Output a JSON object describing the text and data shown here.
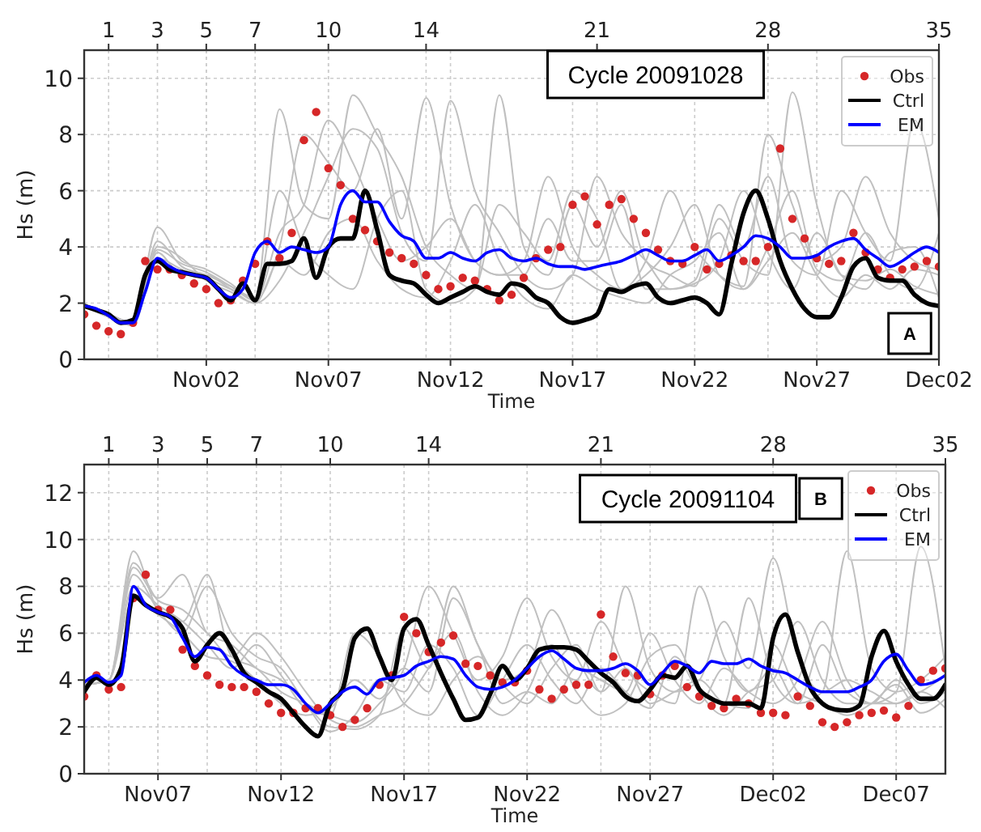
{
  "chart_data": [
    {
      "type": "line",
      "xlabel": "Time",
      "ylabel": "Hs (m)",
      "annotations": [
        "Cycle 20091028",
        "A"
      ],
      "xlim": [
        "2009-10-28",
        "2009-12-02"
      ],
      "xticks": [
        {
          "value": "2009-11-02",
          "label": "Nov02"
        },
        {
          "value": "2009-11-07",
          "label": "Nov07"
        },
        {
          "value": "2009-11-12",
          "label": "Nov12"
        },
        {
          "value": "2009-11-17",
          "label": "Nov17"
        },
        {
          "value": "2009-11-22",
          "label": "Nov22"
        },
        {
          "value": "2009-11-27",
          "label": "Nov27"
        },
        {
          "value": "2009-12-02",
          "label": "Dec02"
        }
      ],
      "x2lim": [
        0,
        35
      ],
      "x2ticks": [
        1,
        3,
        5,
        7,
        10,
        14,
        21,
        28,
        35
      ],
      "ylim": [
        0,
        11
      ],
      "yticks": [
        0,
        2,
        4,
        6,
        8,
        10
      ],
      "grid": true,
      "legend": "top right",
      "x": [
        "2009-10-28T00:00",
        "2009-10-28T12:00",
        "2009-10-29T00:00",
        "2009-10-29T12:00",
        "2009-10-30T00:00",
        "2009-10-30T12:00",
        "2009-10-31T00:00",
        "2009-10-31T12:00",
        "2009-11-01T00:00",
        "2009-11-01T12:00",
        "2009-11-02T00:00",
        "2009-11-02T12:00",
        "2009-11-03T00:00",
        "2009-11-03T12:00",
        "2009-11-04T00:00",
        "2009-11-04T12:00",
        "2009-11-05T00:00",
        "2009-11-05T12:00",
        "2009-11-06T00:00",
        "2009-11-06T12:00",
        "2009-11-07T00:00",
        "2009-11-07T12:00",
        "2009-11-08T00:00",
        "2009-11-08T12:00",
        "2009-11-09T00:00",
        "2009-11-09T12:00",
        "2009-11-10T00:00",
        "2009-11-10T12:00",
        "2009-11-11T00:00",
        "2009-11-11T12:00",
        "2009-11-12T00:00",
        "2009-11-12T12:00",
        "2009-11-13T00:00",
        "2009-11-13T12:00",
        "2009-11-14T00:00",
        "2009-11-14T12:00",
        "2009-11-15T00:00",
        "2009-11-15T12:00",
        "2009-11-16T00:00",
        "2009-11-16T12:00",
        "2009-11-17T00:00",
        "2009-11-17T12:00",
        "2009-11-18T00:00",
        "2009-11-18T12:00",
        "2009-11-19T00:00",
        "2009-11-19T12:00",
        "2009-11-20T00:00",
        "2009-11-20T12:00",
        "2009-11-21T00:00",
        "2009-11-21T12:00",
        "2009-11-22T00:00",
        "2009-11-22T12:00",
        "2009-11-23T00:00",
        "2009-11-23T12:00",
        "2009-11-24T00:00",
        "2009-11-24T12:00",
        "2009-11-25T00:00",
        "2009-11-25T12:00",
        "2009-11-26T00:00",
        "2009-11-26T12:00",
        "2009-11-27T00:00",
        "2009-11-27T12:00",
        "2009-11-28T00:00",
        "2009-11-28T12:00",
        "2009-11-29T00:00",
        "2009-11-29T12:00",
        "2009-11-30T00:00",
        "2009-11-30T12:00",
        "2009-12-01T00:00",
        "2009-12-01T12:00",
        "2009-12-02T00:00"
      ],
      "series": [
        {
          "color": "#c0c0c0",
          "x": [
            "2009-10-28",
            "2009-10-29",
            "2009-10-30",
            "2009-10-31",
            "2009-11-01",
            "2009-11-02",
            "2009-11-03",
            "2009-11-04",
            "2009-11-05",
            "2009-11-06",
            "2009-11-07",
            "2009-11-08",
            "2009-11-09",
            "2009-11-10",
            "2009-11-11",
            "2009-11-12",
            "2009-11-13",
            "2009-11-14",
            "2009-11-15",
            "2009-11-16",
            "2009-11-17",
            "2009-11-18",
            "2009-11-19",
            "2009-11-20",
            "2009-11-21",
            "2009-11-22",
            "2009-11-23",
            "2009-11-24",
            "2009-11-25",
            "2009-11-26",
            "2009-11-27",
            "2009-11-28",
            "2009-11-29",
            "2009-11-30",
            "2009-12-01",
            "2009-12-02"
          ],
          "values": [
            1.9,
            1.6,
            1.3,
            4.2,
            3.3,
            3.0,
            2.6,
            2.2,
            8.9,
            5.5,
            5.0,
            9.4,
            8.0,
            6.5,
            4.0,
            3.0,
            2.5,
            9.4,
            4.0,
            3.0,
            5.5,
            4.0,
            6.0,
            3.5,
            3.0,
            2.6,
            5.0,
            3.5,
            3.0,
            9.5,
            5.5,
            3.0,
            2.8,
            3.2,
            2.6,
            2.3
          ]
        },
        {
          "color": "#c0c0c0",
          "x": [
            "2009-10-28",
            "2009-10-29",
            "2009-10-30",
            "2009-10-31",
            "2009-11-01",
            "2009-11-02",
            "2009-11-03",
            "2009-11-04",
            "2009-11-05",
            "2009-11-06",
            "2009-11-07",
            "2009-11-08",
            "2009-11-09",
            "2009-11-10",
            "2009-11-11",
            "2009-11-12",
            "2009-11-13",
            "2009-11-14",
            "2009-11-15",
            "2009-11-16",
            "2009-11-17",
            "2009-11-18",
            "2009-11-19",
            "2009-11-20",
            "2009-11-21",
            "2009-11-22",
            "2009-11-23",
            "2009-11-24",
            "2009-11-25",
            "2009-11-26",
            "2009-11-27",
            "2009-11-28",
            "2009-11-29",
            "2009-11-30",
            "2009-12-01",
            "2009-12-02"
          ],
          "values": [
            1.9,
            1.6,
            1.3,
            4.7,
            3.5,
            3.2,
            2.7,
            2.1,
            4.0,
            8.0,
            7.0,
            6.0,
            8.2,
            5.0,
            9.3,
            5.5,
            3.5,
            3.0,
            3.5,
            6.5,
            4.0,
            3.0,
            2.5,
            3.5,
            6.0,
            4.0,
            3.0,
            2.6,
            8.0,
            5.5,
            3.5,
            4.0,
            6.5,
            4.5,
            3.5,
            3.2
          ]
        },
        {
          "color": "#c0c0c0",
          "x": [
            "2009-10-28",
            "2009-10-29",
            "2009-10-30",
            "2009-10-31",
            "2009-11-01",
            "2009-11-02",
            "2009-11-03",
            "2009-11-04",
            "2009-11-05",
            "2009-11-06",
            "2009-11-07",
            "2009-11-08",
            "2009-11-09",
            "2009-11-10",
            "2009-11-11",
            "2009-11-12",
            "2009-11-13",
            "2009-11-14",
            "2009-11-15",
            "2009-11-16",
            "2009-11-17",
            "2009-11-18",
            "2009-11-19",
            "2009-11-20",
            "2009-11-21",
            "2009-11-22",
            "2009-11-23",
            "2009-11-24",
            "2009-11-25",
            "2009-11-26",
            "2009-11-27",
            "2009-11-28",
            "2009-11-29",
            "2009-11-30",
            "2009-12-01",
            "2009-12-02"
          ],
          "values": [
            1.9,
            1.5,
            1.2,
            3.8,
            3.0,
            3.0,
            2.5,
            2.0,
            2.8,
            4.5,
            6.5,
            8.2,
            7.5,
            4.5,
            3.5,
            9.2,
            6.0,
            4.5,
            3.0,
            2.5,
            3.0,
            6.5,
            4.5,
            3.5,
            2.5,
            2.8,
            5.5,
            4.0,
            6.5,
            3.5,
            3.0,
            6.0,
            4.5,
            3.5,
            8.5,
            5.0
          ]
        },
        {
          "color": "#c0c0c0",
          "x": [
            "2009-10-28",
            "2009-10-29",
            "2009-10-30",
            "2009-10-31",
            "2009-11-01",
            "2009-11-02",
            "2009-11-03",
            "2009-11-04",
            "2009-11-05",
            "2009-11-06",
            "2009-11-07",
            "2009-11-08",
            "2009-11-09",
            "2009-11-10",
            "2009-11-11",
            "2009-11-12",
            "2009-11-13",
            "2009-11-14",
            "2009-11-15",
            "2009-11-16",
            "2009-11-17",
            "2009-11-18",
            "2009-11-19",
            "2009-11-20",
            "2009-11-21",
            "2009-11-22",
            "2009-11-23",
            "2009-11-24",
            "2009-11-25",
            "2009-11-26",
            "2009-11-27",
            "2009-11-28",
            "2009-11-29",
            "2009-11-30",
            "2009-12-01",
            "2009-12-02"
          ],
          "values": [
            1.9,
            1.6,
            1.3,
            4.0,
            3.6,
            2.8,
            2.4,
            2.0,
            3.5,
            3.0,
            4.5,
            5.0,
            3.5,
            2.5,
            2.2,
            3.5,
            5.5,
            3.5,
            2.2,
            1.8,
            3.0,
            2.5,
            2.2,
            2.0,
            3.0,
            3.5,
            4.5,
            2.5,
            3.5,
            4.5,
            3.0,
            2.2,
            3.0,
            2.5,
            3.2,
            3.0
          ]
        },
        {
          "color": "#c0c0c0",
          "x": [
            "2009-10-28",
            "2009-10-29",
            "2009-10-30",
            "2009-10-31",
            "2009-11-01",
            "2009-11-02",
            "2009-11-03",
            "2009-11-04",
            "2009-11-05",
            "2009-11-06",
            "2009-11-07",
            "2009-11-08",
            "2009-11-09",
            "2009-11-10",
            "2009-11-11",
            "2009-11-12",
            "2009-11-13",
            "2009-11-14",
            "2009-11-15",
            "2009-11-16",
            "2009-11-17",
            "2009-11-18",
            "2009-11-19",
            "2009-11-20",
            "2009-11-21",
            "2009-11-22",
            "2009-11-23",
            "2009-11-24",
            "2009-11-25",
            "2009-11-26",
            "2009-11-27",
            "2009-11-28",
            "2009-11-29",
            "2009-11-30",
            "2009-12-01",
            "2009-12-02"
          ],
          "values": [
            1.9,
            1.6,
            1.3,
            3.6,
            3.2,
            2.9,
            2.5,
            2.2,
            6.0,
            4.0,
            3.0,
            2.5,
            5.0,
            6.0,
            2.5,
            2.0,
            2.5,
            5.5,
            4.5,
            3.5,
            6.0,
            5.0,
            2.5,
            3.0,
            4.0,
            5.5,
            3.0,
            2.5,
            4.0,
            6.0,
            3.2,
            2.8,
            4.5,
            3.0,
            2.5,
            4.5
          ]
        },
        {
          "color": "#c0c0c0",
          "x": [
            "2009-10-28",
            "2009-10-29",
            "2009-10-30",
            "2009-10-31",
            "2009-11-01",
            "2009-11-02",
            "2009-11-03",
            "2009-11-04",
            "2009-11-05",
            "2009-11-06",
            "2009-11-07",
            "2009-11-08",
            "2009-11-09",
            "2009-11-10",
            "2009-11-11",
            "2009-11-12",
            "2009-11-13",
            "2009-11-14",
            "2009-11-15",
            "2009-11-16",
            "2009-11-17",
            "2009-11-18",
            "2009-11-19",
            "2009-11-20",
            "2009-11-21",
            "2009-11-22",
            "2009-11-23",
            "2009-11-24",
            "2009-11-25",
            "2009-11-26",
            "2009-11-27",
            "2009-11-28",
            "2009-11-29",
            "2009-11-30",
            "2009-12-01",
            "2009-12-02"
          ],
          "values": [
            1.9,
            1.6,
            1.3,
            3.9,
            3.4,
            3.1,
            2.6,
            2.1,
            4.5,
            5.5,
            8.5,
            7.0,
            5.0,
            3.5,
            4.0,
            5.0,
            3.5,
            3.0,
            3.0,
            5.0,
            3.5,
            3.5,
            5.5,
            2.5,
            2.5,
            2.7,
            3.5,
            6.0,
            3.8,
            2.5,
            4.5,
            3.0,
            2.5,
            3.8,
            4.0,
            2.2
          ]
        },
        {
          "name": "Obs",
          "type": "scatter",
          "marker": "circle",
          "color": "#d62728",
          "values": [
            1.6,
            1.2,
            1.0,
            0.9,
            1.3,
            3.5,
            3.2,
            3.2,
            3.0,
            2.7,
            2.5,
            2.0,
            2.1,
            2.8,
            3.4,
            4.2,
            3.6,
            4.5,
            7.8,
            8.8,
            6.8,
            6.2,
            5.0,
            4.6,
            4.2,
            3.8,
            3.6,
            3.4,
            3.0,
            2.5,
            2.6,
            2.9,
            2.8,
            2.5,
            2.1,
            2.3,
            2.9,
            3.6,
            3.9,
            4.0,
            5.5,
            5.8,
            4.8,
            5.5,
            5.7,
            5.0,
            4.5,
            3.9,
            3.5,
            3.4,
            4.0,
            3.2,
            3.4,
            3.7,
            3.5,
            3.5,
            4.0,
            7.5,
            5.0,
            4.3,
            3.6,
            3.4,
            3.5,
            4.5,
            3.8,
            3.2,
            2.9,
            3.2,
            3.3,
            3.5,
            3.3
          ]
        },
        {
          "name": "Ctrl",
          "color": "#000000",
          "values": [
            1.9,
            1.75,
            1.6,
            1.3,
            1.4,
            3.0,
            3.5,
            3.2,
            3.1,
            3.0,
            2.9,
            2.5,
            2.1,
            2.7,
            2.1,
            3.4,
            3.4,
            3.5,
            4.3,
            2.9,
            4.0,
            4.3,
            4.3,
            6.0,
            4.6,
            3.0,
            2.8,
            2.7,
            2.3,
            2.0,
            2.2,
            2.4,
            2.6,
            2.4,
            2.3,
            2.7,
            2.6,
            2.2,
            2.0,
            1.5,
            1.3,
            1.4,
            1.6,
            2.5,
            2.4,
            2.6,
            2.7,
            2.2,
            2.0,
            2.1,
            2.2,
            2.0,
            1.6,
            3.4,
            5.2,
            6.0,
            5.0,
            3.5,
            2.5,
            1.8,
            1.5,
            1.5,
            2.2,
            3.3,
            3.6,
            2.9,
            2.8,
            2.8,
            2.3,
            2.0,
            1.9
          ]
        },
        {
          "name": "EM",
          "color": "#0000ff",
          "values": [
            1.9,
            1.8,
            1.55,
            1.3,
            1.3,
            2.4,
            3.6,
            3.3,
            3.1,
            3.0,
            2.9,
            2.5,
            2.2,
            2.5,
            3.8,
            4.2,
            3.8,
            4.0,
            3.9,
            3.8,
            4.0,
            5.5,
            6.0,
            5.6,
            5.6,
            4.9,
            4.4,
            4.2,
            3.6,
            3.6,
            3.8,
            3.6,
            3.5,
            3.8,
            3.9,
            3.6,
            3.5,
            3.6,
            3.4,
            3.3,
            3.3,
            3.2,
            3.3,
            3.4,
            3.5,
            3.7,
            3.9,
            3.7,
            3.5,
            3.5,
            3.7,
            3.9,
            3.5,
            3.7,
            4.0,
            4.4,
            4.3,
            4.0,
            3.6,
            3.6,
            3.7,
            4.0,
            4.2,
            4.3,
            3.9,
            3.6,
            3.3,
            3.5,
            3.8,
            4.0,
            3.8
          ]
        }
      ]
    },
    {
      "type": "line",
      "xlabel": "Time",
      "ylabel": "Hs (m)",
      "annotations": [
        "Cycle 20091104",
        "B"
      ],
      "xlim": [
        "2009-11-04",
        "2009-12-09"
      ],
      "xticks": [
        {
          "value": "2009-11-07",
          "label": "Nov07"
        },
        {
          "value": "2009-11-12",
          "label": "Nov12"
        },
        {
          "value": "2009-11-17",
          "label": "Nov17"
        },
        {
          "value": "2009-11-22",
          "label": "Nov22"
        },
        {
          "value": "2009-11-27",
          "label": "Nov27"
        },
        {
          "value": "2009-12-02",
          "label": "Dec02"
        },
        {
          "value": "2009-12-07",
          "label": "Dec07"
        }
      ],
      "x2lim": [
        0,
        35
      ],
      "x2ticks": [
        1,
        3,
        5,
        7,
        10,
        14,
        21,
        28,
        35
      ],
      "ylim": [
        0,
        13.2
      ],
      "yticks": [
        0,
        2,
        4,
        6,
        8,
        10,
        12
      ],
      "grid": true,
      "legend": "top right",
      "x": [
        "2009-11-04T00:00",
        "2009-11-04T12:00",
        "2009-11-05T00:00",
        "2009-11-05T12:00",
        "2009-11-06T00:00",
        "2009-11-06T12:00",
        "2009-11-07T00:00",
        "2009-11-07T12:00",
        "2009-11-08T00:00",
        "2009-11-08T12:00",
        "2009-11-09T00:00",
        "2009-11-09T12:00",
        "2009-11-10T00:00",
        "2009-11-10T12:00",
        "2009-11-11T00:00",
        "2009-11-11T12:00",
        "2009-11-12T00:00",
        "2009-11-12T12:00",
        "2009-11-13T00:00",
        "2009-11-13T12:00",
        "2009-11-14T00:00",
        "2009-11-14T12:00",
        "2009-11-15T00:00",
        "2009-11-15T12:00",
        "2009-11-16T00:00",
        "2009-11-16T12:00",
        "2009-11-17T00:00",
        "2009-11-17T12:00",
        "2009-11-18T00:00",
        "2009-11-18T12:00",
        "2009-11-19T00:00",
        "2009-11-19T12:00",
        "2009-11-20T00:00",
        "2009-11-20T12:00",
        "2009-11-21T00:00",
        "2009-11-21T12:00",
        "2009-11-22T00:00",
        "2009-11-22T12:00",
        "2009-11-23T00:00",
        "2009-11-23T12:00",
        "2009-11-24T00:00",
        "2009-11-24T12:00",
        "2009-11-25T00:00",
        "2009-11-25T12:00",
        "2009-11-26T00:00",
        "2009-11-26T12:00",
        "2009-11-27T00:00",
        "2009-11-27T12:00",
        "2009-11-28T00:00",
        "2009-11-28T12:00",
        "2009-11-29T00:00",
        "2009-11-29T12:00",
        "2009-11-30T00:00",
        "2009-11-30T12:00",
        "2009-12-01T00:00",
        "2009-12-01T12:00",
        "2009-12-02T00:00",
        "2009-12-02T12:00",
        "2009-12-03T00:00",
        "2009-12-03T12:00",
        "2009-12-04T00:00",
        "2009-12-04T12:00",
        "2009-12-05T00:00",
        "2009-12-05T12:00",
        "2009-12-06T00:00",
        "2009-12-06T12:00",
        "2009-12-07T00:00",
        "2009-12-07T12:00",
        "2009-12-08T00:00",
        "2009-12-08T12:00",
        "2009-12-09T00:00"
      ],
      "series": [
        {
          "color": "#c0c0c0",
          "x": [
            "2009-11-04",
            "2009-11-05",
            "2009-11-06",
            "2009-11-07",
            "2009-11-08",
            "2009-11-09",
            "2009-11-10",
            "2009-11-11",
            "2009-11-12",
            "2009-11-13",
            "2009-11-14",
            "2009-11-15",
            "2009-11-16",
            "2009-11-17",
            "2009-11-18",
            "2009-11-19",
            "2009-11-20",
            "2009-11-21",
            "2009-11-22",
            "2009-11-23",
            "2009-11-24",
            "2009-11-25",
            "2009-11-26",
            "2009-11-27",
            "2009-11-28",
            "2009-11-29",
            "2009-11-30",
            "2009-12-01",
            "2009-12-02",
            "2009-12-03",
            "2009-12-04",
            "2009-12-05",
            "2009-12-06",
            "2009-12-07",
            "2009-12-08",
            "2009-12-09"
          ],
          "values": [
            3.8,
            4.0,
            9.5,
            7.0,
            6.5,
            8.5,
            5.0,
            4.5,
            3.5,
            3.0,
            2.5,
            2.2,
            3.0,
            4.5,
            8.0,
            6.0,
            4.0,
            5.0,
            7.5,
            5.0,
            4.0,
            6.5,
            4.5,
            3.5,
            3.0,
            8.0,
            5.0,
            3.5,
            4.5,
            3.0,
            3.5,
            9.5,
            4.5,
            3.5,
            4.0,
            5.0
          ]
        },
        {
          "color": "#c0c0c0",
          "x": [
            "2009-11-04",
            "2009-11-05",
            "2009-11-06",
            "2009-11-07",
            "2009-11-08",
            "2009-11-09",
            "2009-11-10",
            "2009-11-11",
            "2009-11-12",
            "2009-11-13",
            "2009-11-14",
            "2009-11-15",
            "2009-11-16",
            "2009-11-17",
            "2009-11-18",
            "2009-11-19",
            "2009-11-20",
            "2009-11-21",
            "2009-11-22",
            "2009-11-23",
            "2009-11-24",
            "2009-11-25",
            "2009-11-26",
            "2009-11-27",
            "2009-11-28",
            "2009-11-29",
            "2009-11-30",
            "2009-12-01",
            "2009-12-02",
            "2009-12-03",
            "2009-12-04",
            "2009-12-05",
            "2009-12-06",
            "2009-12-07",
            "2009-12-08",
            "2009-12-09"
          ],
          "values": [
            3.8,
            4.0,
            8.8,
            7.5,
            8.5,
            6.0,
            5.5,
            4.5,
            4.0,
            3.0,
            2.0,
            1.9,
            2.5,
            6.2,
            4.5,
            8.0,
            5.5,
            4.0,
            4.5,
            7.0,
            5.0,
            3.5,
            8.0,
            4.5,
            3.5,
            4.0,
            6.5,
            4.5,
            9.2,
            5.0,
            3.5,
            4.0,
            3.5,
            3.0,
            3.5,
            4.2
          ]
        },
        {
          "color": "#c0c0c0",
          "x": [
            "2009-11-04",
            "2009-11-05",
            "2009-11-06",
            "2009-11-07",
            "2009-11-08",
            "2009-11-09",
            "2009-11-10",
            "2009-11-11",
            "2009-11-12",
            "2009-11-13",
            "2009-11-14",
            "2009-11-15",
            "2009-11-16",
            "2009-11-17",
            "2009-11-18",
            "2009-11-19",
            "2009-11-20",
            "2009-11-21",
            "2009-11-22",
            "2009-11-23",
            "2009-11-24",
            "2009-11-25",
            "2009-11-26",
            "2009-11-27",
            "2009-11-28",
            "2009-11-29",
            "2009-11-30",
            "2009-12-01",
            "2009-12-02",
            "2009-12-03",
            "2009-12-04",
            "2009-12-05",
            "2009-12-06",
            "2009-12-07",
            "2009-12-08",
            "2009-12-09"
          ],
          "values": [
            3.8,
            4.0,
            8.5,
            7.0,
            6.0,
            8.0,
            6.0,
            5.0,
            4.5,
            3.0,
            1.8,
            2.5,
            4.0,
            3.5,
            5.5,
            4.5,
            2.5,
            4.0,
            5.5,
            4.0,
            3.0,
            4.5,
            3.5,
            2.8,
            5.0,
            3.5,
            3.0,
            7.5,
            4.0,
            3.0,
            5.5,
            3.5,
            3.0,
            3.5,
            9.7,
            4.5
          ]
        },
        {
          "color": "#c0c0c0",
          "x": [
            "2009-11-04",
            "2009-11-05",
            "2009-11-06",
            "2009-11-07",
            "2009-11-08",
            "2009-11-09",
            "2009-11-10",
            "2009-11-11",
            "2009-11-12",
            "2009-11-13",
            "2009-11-14",
            "2009-11-15",
            "2009-11-16",
            "2009-11-17",
            "2009-11-18",
            "2009-11-19",
            "2009-11-20",
            "2009-11-21",
            "2009-11-22",
            "2009-11-23",
            "2009-11-24",
            "2009-11-25",
            "2009-11-26",
            "2009-11-27",
            "2009-11-28",
            "2009-11-29",
            "2009-11-30",
            "2009-12-01",
            "2009-12-02",
            "2009-12-03",
            "2009-12-04",
            "2009-12-05",
            "2009-12-06",
            "2009-12-07",
            "2009-12-08",
            "2009-12-09"
          ],
          "values": [
            3.8,
            4.0,
            8.0,
            7.2,
            6.5,
            5.5,
            4.5,
            5.5,
            4.2,
            2.8,
            2.5,
            6.0,
            5.0,
            3.0,
            2.5,
            4.0,
            5.0,
            3.8,
            3.0,
            4.5,
            5.5,
            3.5,
            4.5,
            3.0,
            3.5,
            4.0,
            3.0,
            2.8,
            5.5,
            3.5,
            3.0,
            2.5,
            3.0,
            3.8,
            2.6,
            3.2
          ]
        },
        {
          "color": "#c0c0c0",
          "x": [
            "2009-11-04",
            "2009-11-05",
            "2009-11-06",
            "2009-11-07",
            "2009-11-08",
            "2009-11-09",
            "2009-11-10",
            "2009-11-11",
            "2009-11-12",
            "2009-11-13",
            "2009-11-14",
            "2009-11-15",
            "2009-11-16",
            "2009-11-17",
            "2009-11-18",
            "2009-11-19",
            "2009-11-20",
            "2009-11-21",
            "2009-11-22",
            "2009-11-23",
            "2009-11-24",
            "2009-11-25",
            "2009-11-26",
            "2009-11-27",
            "2009-11-28",
            "2009-11-29",
            "2009-11-30",
            "2009-12-01",
            "2009-12-02",
            "2009-12-03",
            "2009-12-04",
            "2009-12-05",
            "2009-12-06",
            "2009-12-07",
            "2009-12-08",
            "2009-12-09"
          ],
          "values": [
            3.8,
            4.0,
            7.5,
            6.8,
            6.0,
            5.0,
            4.8,
            4.0,
            3.0,
            2.5,
            2.8,
            4.0,
            3.2,
            4.5,
            3.5,
            7.5,
            5.5,
            3.0,
            3.5,
            3.0,
            4.5,
            4.0,
            3.5,
            6.0,
            4.0,
            3.0,
            4.5,
            3.5,
            3.0,
            4.0,
            6.5,
            4.0,
            3.0,
            3.0,
            3.5,
            2.8
          ]
        },
        {
          "color": "#c0c0c0",
          "x": [
            "2009-11-04",
            "2009-11-05",
            "2009-11-06",
            "2009-11-07",
            "2009-11-08",
            "2009-11-09",
            "2009-11-10",
            "2009-11-11",
            "2009-11-12",
            "2009-11-13",
            "2009-11-14",
            "2009-11-15",
            "2009-11-16",
            "2009-11-17",
            "2009-11-18",
            "2009-11-19",
            "2009-11-20",
            "2009-11-21",
            "2009-11-22",
            "2009-11-23",
            "2009-11-24",
            "2009-11-25",
            "2009-11-26",
            "2009-11-27",
            "2009-11-28",
            "2009-11-29",
            "2009-11-30",
            "2009-12-01",
            "2009-12-02",
            "2009-12-03",
            "2009-12-04",
            "2009-12-05",
            "2009-12-06",
            "2009-12-07",
            "2009-12-08",
            "2009-12-09"
          ],
          "values": [
            3.8,
            4.0,
            9.0,
            7.4,
            7.0,
            6.0,
            5.0,
            6.0,
            5.0,
            3.5,
            2.3,
            2.0,
            2.5,
            3.0,
            4.5,
            6.0,
            3.5,
            2.5,
            3.5,
            5.5,
            3.5,
            2.5,
            3.0,
            5.0,
            5.5,
            3.5,
            2.5,
            3.5,
            4.0,
            6.5,
            4.0,
            3.0,
            3.0,
            4.0,
            3.0,
            3.5
          ]
        },
        {
          "name": "Obs",
          "type": "scatter",
          "marker": "circle",
          "color": "#d62728",
          "values": [
            3.3,
            4.2,
            3.6,
            3.7,
            7.5,
            8.5,
            7.0,
            7.0,
            5.3,
            4.6,
            4.2,
            3.8,
            3.7,
            3.7,
            3.5,
            3.0,
            2.6,
            2.6,
            2.8,
            2.8,
            2.5,
            2.0,
            2.3,
            2.8,
            3.8,
            4.2,
            6.7,
            6.0,
            5.2,
            5.6,
            5.9,
            4.7,
            4.6,
            4.2,
            3.9,
            3.9,
            4.4,
            3.6,
            3.2,
            3.6,
            3.8,
            3.8,
            6.8,
            5.0,
            4.3,
            4.2,
            3.4,
            4.2,
            4.6,
            3.7,
            3.3,
            2.9,
            2.8,
            3.2,
            3.0,
            2.6,
            2.6,
            2.5,
            3.3,
            2.9,
            2.2,
            2.0,
            2.2,
            2.5,
            2.6,
            2.7,
            2.4,
            2.9,
            4.0,
            4.4,
            4.5
          ]
        },
        {
          "name": "Ctrl",
          "color": "#000000",
          "values": [
            3.5,
            4.1,
            3.8,
            4.5,
            7.6,
            7.2,
            6.9,
            6.7,
            6.2,
            4.8,
            5.5,
            6.0,
            5.3,
            4.3,
            3.9,
            3.5,
            3.2,
            2.6,
            2.0,
            1.6,
            3.0,
            3.6,
            5.8,
            6.2,
            5.0,
            4.0,
            6.2,
            6.6,
            5.5,
            4.3,
            3.2,
            2.3,
            2.4,
            3.4,
            4.6,
            4.0,
            4.5,
            5.3,
            5.4,
            5.4,
            5.3,
            4.8,
            4.3,
            3.9,
            3.3,
            3.1,
            3.6,
            4.2,
            4.1,
            4.6,
            3.6,
            3.2,
            3.0,
            3.0,
            3.0,
            2.8,
            5.8,
            6.8,
            5.2,
            3.7,
            3.0,
            2.75,
            2.7,
            2.9,
            5.0,
            6.1,
            4.8,
            3.8,
            3.2,
            3.2,
            3.8
          ]
        },
        {
          "name": "EM",
          "color": "#0000ff",
          "values": [
            3.9,
            4.2,
            3.9,
            4.2,
            8.0,
            7.2,
            6.9,
            6.7,
            5.8,
            5.0,
            5.4,
            5.3,
            4.6,
            4.2,
            4.0,
            3.8,
            3.8,
            3.6,
            3.0,
            2.6,
            3.0,
            3.5,
            3.7,
            3.4,
            4.0,
            4.1,
            4.2,
            4.6,
            4.8,
            5.0,
            4.9,
            4.2,
            3.7,
            3.6,
            3.7,
            4.0,
            4.5,
            5.0,
            5.25,
            4.9,
            4.5,
            4.4,
            4.4,
            4.5,
            4.7,
            4.4,
            3.8,
            4.3,
            4.8,
            4.6,
            4.3,
            4.8,
            4.7,
            4.7,
            4.9,
            4.6,
            4.4,
            4.3,
            4.0,
            3.7,
            3.5,
            3.5,
            3.5,
            3.7,
            4.0,
            4.8,
            5.1,
            4.4,
            3.8,
            3.9,
            4.2
          ]
        }
      ]
    }
  ]
}
